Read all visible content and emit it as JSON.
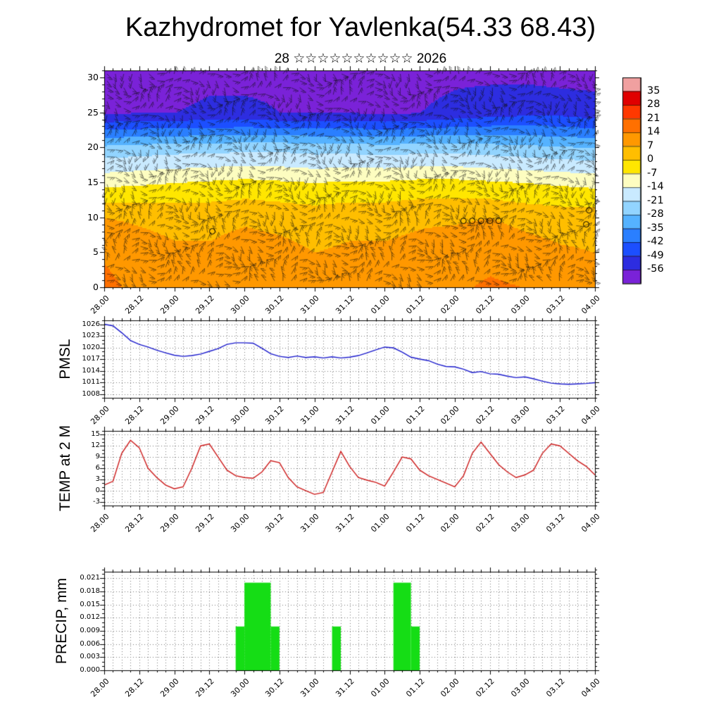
{
  "page": {
    "title": "Kazhydromet for Yavlenka(54.33 68.43)",
    "subtitle": "28 ☆☆☆☆☆☆☆☆☆☆ 2026"
  },
  "time_axis": {
    "tick_labels": [
      "28.00",
      "28.12",
      "29.00",
      "29.12",
      "30.00",
      "30.12",
      "31.00",
      "31.12",
      "01.00",
      "01.12",
      "02.00",
      "02.12",
      "03.00",
      "03.12",
      "04.00"
    ],
    "tick_hours": [
      0,
      12,
      24,
      36,
      48,
      60,
      72,
      84,
      96,
      108,
      120,
      132,
      144,
      156,
      168
    ],
    "minor_step_hours": 3,
    "total_hours": 168
  },
  "chart_data": [
    {
      "id": "upper_air_cross_section",
      "type": "heatmap",
      "ylabel": "",
      "ylim": [
        0,
        31
      ],
      "yticks": [
        0,
        5,
        10,
        15,
        20,
        25,
        30
      ],
      "levels": [
        0,
        5,
        10,
        15,
        20,
        25,
        30
      ],
      "column_hours": [
        0,
        12,
        24,
        36,
        48,
        60,
        72,
        84,
        96,
        108,
        120,
        132,
        144,
        156,
        168
      ],
      "grid_note": "temperature (deg C), rows bottom level 0 up to level 30, columns every 12 h",
      "temperature_grid": [
        [
          16,
          12,
          9,
          10,
          12,
          10,
          8,
          9,
          9,
          10,
          13,
          15,
          14,
          10,
          8
        ],
        [
          13,
          10,
          8,
          8,
          10,
          9,
          7,
          8,
          8,
          9,
          11,
          12,
          10,
          8,
          7
        ],
        [
          7,
          6,
          5,
          5,
          6,
          5,
          4,
          5,
          5,
          6,
          6,
          7,
          5,
          4,
          4
        ],
        [
          -9,
          -8,
          -7,
          -6,
          -5,
          -6,
          -7,
          -6,
          -6,
          -5,
          -5,
          -6,
          -7,
          -8,
          -9
        ],
        [
          -26,
          -25,
          -24,
          -24,
          -23,
          -23,
          -24,
          -24,
          -25,
          -24,
          -24,
          -25,
          -26,
          -27,
          -28
        ],
        [
          -57,
          -56,
          -56,
          -55,
          -55,
          -56,
          -56,
          -56,
          -57,
          -56,
          -54,
          -52,
          -51,
          -51,
          -53
        ],
        [
          -58,
          -58,
          -58,
          -57,
          -57,
          -57,
          -58,
          -58,
          -58,
          -58,
          -57,
          -57,
          -57,
          -58,
          -58
        ]
      ],
      "wind_barbs": true,
      "calm_markers": [
        {
          "hour": 37,
          "level": 8
        },
        {
          "hour": 123,
          "level": 9.5
        },
        {
          "hour": 126,
          "level": 9.5
        },
        {
          "hour": 129,
          "level": 9.5
        },
        {
          "hour": 132,
          "level": 9.5
        },
        {
          "hour": 135,
          "level": 9.5
        },
        {
          "hour": 165,
          "level": 9
        },
        {
          "hour": 166,
          "level": 11
        }
      ],
      "colorbar": {
        "tick_labels": [
          35,
          28,
          21,
          14,
          7,
          0,
          -7,
          -14,
          -21,
          -28,
          -35,
          -42,
          -49,
          -56
        ],
        "colors": [
          "#f0a0a0",
          "#e00000",
          "#ff3800",
          "#ff7000",
          "#ff9800",
          "#ffbe00",
          "#ffe600",
          "#fdfdc0",
          "#c9eaff",
          "#92d4ff",
          "#55b2ff",
          "#2a7fff",
          "#1c4fff",
          "#2d2de0",
          "#7a22d8"
        ]
      }
    },
    {
      "id": "pmsl",
      "type": "line",
      "ylabel": "PMSL",
      "color": "#1a1acc",
      "ylim": [
        1007,
        1027
      ],
      "yticks": [
        1008,
        1011,
        1014,
        1017,
        1020,
        1023,
        1026
      ],
      "x_step_hours": 3,
      "values": [
        1026.0,
        1025.6,
        1023.8,
        1021.8,
        1020.8,
        1020.1,
        1019.3,
        1018.6,
        1018.0,
        1017.7,
        1017.9,
        1018.3,
        1019.0,
        1019.7,
        1020.8,
        1021.2,
        1021.2,
        1021.1,
        1019.8,
        1018.4,
        1017.7,
        1017.4,
        1017.8,
        1017.4,
        1017.6,
        1017.3,
        1017.6,
        1017.3,
        1017.5,
        1017.9,
        1018.6,
        1019.4,
        1020.1,
        1019.9,
        1018.8,
        1017.5,
        1017.0,
        1016.6,
        1015.7,
        1015.1,
        1015.0,
        1014.4,
        1013.5,
        1013.8,
        1013.2,
        1013.1,
        1012.6,
        1012.2,
        1012.4,
        1011.9,
        1011.3,
        1010.8,
        1010.6,
        1010.5,
        1010.6,
        1010.7,
        1010.9
      ]
    },
    {
      "id": "temp_2m",
      "type": "line",
      "ylabel": "TEMP at 2 M",
      "color": "#cc1a1a",
      "ylim": [
        -4,
        16
      ],
      "yticks": [
        -3,
        0,
        3,
        6,
        9,
        12,
        15
      ],
      "x_step_hours": 3,
      "values": [
        1.5,
        2.5,
        10.0,
        13.5,
        11.5,
        6.0,
        3.5,
        1.5,
        0.5,
        1.0,
        6.0,
        12.0,
        12.5,
        9.0,
        5.5,
        4.0,
        3.5,
        3.3,
        5.0,
        8.0,
        7.5,
        3.5,
        1.0,
        0.0,
        -1.0,
        -0.5,
        5.0,
        10.5,
        6.5,
        3.5,
        2.8,
        2.2,
        1.2,
        5.0,
        9.0,
        8.5,
        5.5,
        4.0,
        3.0,
        2.0,
        1.0,
        4.0,
        10.0,
        13.0,
        10.0,
        7.0,
        5.0,
        3.5,
        4.2,
        5.5,
        10.0,
        12.5,
        12.0,
        10.0,
        8.0,
        6.5,
        4.2
      ]
    },
    {
      "id": "precip",
      "type": "bar",
      "ylabel": "PRECIP, mm",
      "color": "#15dd15",
      "ylim": [
        0,
        0.0225
      ],
      "yticks": [
        0,
        0.003,
        0.006,
        0.009,
        0.012,
        0.015,
        0.018,
        0.021
      ],
      "ytick_labels": [
        "0.000",
        "0.003",
        "0.006",
        "0.009",
        "0.012",
        "0.015",
        "0.018",
        "0.021"
      ],
      "bars": [
        {
          "start_hour": 45,
          "end_hour": 48,
          "value": 0.01
        },
        {
          "start_hour": 48,
          "end_hour": 57,
          "value": 0.02
        },
        {
          "start_hour": 57,
          "end_hour": 60,
          "value": 0.01
        },
        {
          "start_hour": 78,
          "end_hour": 81,
          "value": 0.01
        },
        {
          "start_hour": 99,
          "end_hour": 105,
          "value": 0.02
        },
        {
          "start_hour": 105,
          "end_hour": 108,
          "value": 0.01
        }
      ]
    }
  ]
}
